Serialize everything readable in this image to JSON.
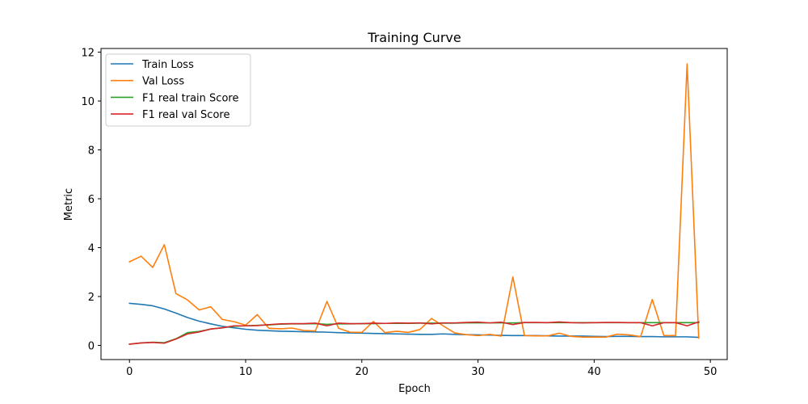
{
  "chart_data": {
    "type": "line",
    "title": "Training Curve",
    "xlabel": "Epoch",
    "ylabel": "Metric",
    "xlim": [
      -2.45,
      51.45
    ],
    "ylim": [
      -0.58,
      12.15
    ],
    "xticks": [
      0,
      10,
      20,
      30,
      40,
      50
    ],
    "yticks": [
      0,
      2,
      4,
      6,
      8,
      10,
      12
    ],
    "grid": false,
    "legend_position": "top-left",
    "series": [
      {
        "name": "Train Loss",
        "color": "#1f77b4",
        "x": [
          0,
          1,
          2,
          3,
          4,
          5,
          6,
          7,
          8,
          9,
          10,
          11,
          12,
          13,
          14,
          15,
          16,
          17,
          18,
          19,
          20,
          21,
          22,
          23,
          24,
          25,
          26,
          27,
          28,
          29,
          30,
          31,
          32,
          33,
          34,
          35,
          36,
          37,
          38,
          39,
          40,
          41,
          42,
          43,
          44,
          45,
          46,
          47,
          48,
          49
        ],
        "values": [
          1.72,
          1.68,
          1.62,
          1.49,
          1.32,
          1.14,
          0.99,
          0.88,
          0.78,
          0.72,
          0.66,
          0.62,
          0.6,
          0.58,
          0.57,
          0.56,
          0.55,
          0.54,
          0.52,
          0.51,
          0.5,
          0.49,
          0.48,
          0.47,
          0.46,
          0.45,
          0.45,
          0.47,
          0.45,
          0.44,
          0.43,
          0.42,
          0.41,
          0.4,
          0.4,
          0.4,
          0.39,
          0.38,
          0.38,
          0.38,
          0.37,
          0.36,
          0.37,
          0.37,
          0.36,
          0.36,
          0.35,
          0.35,
          0.35,
          0.33
        ]
      },
      {
        "name": "Val Loss",
        "color": "#ff7f0e",
        "x": [
          0,
          1,
          2,
          3,
          4,
          5,
          6,
          7,
          8,
          9,
          10,
          11,
          12,
          13,
          14,
          15,
          16,
          17,
          18,
          19,
          20,
          21,
          22,
          23,
          24,
          25,
          26,
          27,
          28,
          29,
          30,
          31,
          32,
          33,
          34,
          35,
          36,
          37,
          38,
          39,
          40,
          41,
          42,
          43,
          44,
          45,
          46,
          47,
          48,
          49
        ],
        "values": [
          3.42,
          3.65,
          3.19,
          4.12,
          2.12,
          1.86,
          1.45,
          1.58,
          1.06,
          0.97,
          0.83,
          1.26,
          0.7,
          0.68,
          0.71,
          0.61,
          0.59,
          1.8,
          0.7,
          0.54,
          0.53,
          0.98,
          0.52,
          0.58,
          0.53,
          0.65,
          1.1,
          0.8,
          0.51,
          0.44,
          0.4,
          0.45,
          0.38,
          2.8,
          0.4,
          0.39,
          0.39,
          0.5,
          0.37,
          0.34,
          0.34,
          0.34,
          0.46,
          0.43,
          0.36,
          1.88,
          0.4,
          0.4,
          11.52,
          0.3
        ]
      },
      {
        "name": "F1 real train Score",
        "color": "#2ca02c",
        "x": [
          0,
          1,
          2,
          3,
          4,
          5,
          6,
          7,
          8,
          9,
          10,
          11,
          12,
          13,
          14,
          15,
          16,
          17,
          18,
          19,
          20,
          21,
          22,
          23,
          24,
          25,
          26,
          27,
          28,
          29,
          30,
          31,
          32,
          33,
          34,
          35,
          36,
          37,
          38,
          39,
          40,
          41,
          42,
          43,
          44,
          45,
          46,
          47,
          48,
          49
        ],
        "values": [
          0.05,
          0.1,
          0.13,
          0.11,
          0.27,
          0.52,
          0.57,
          0.67,
          0.72,
          0.78,
          0.8,
          0.82,
          0.84,
          0.87,
          0.88,
          0.88,
          0.89,
          0.86,
          0.88,
          0.88,
          0.89,
          0.89,
          0.9,
          0.9,
          0.9,
          0.91,
          0.91,
          0.91,
          0.91,
          0.92,
          0.92,
          0.92,
          0.92,
          0.92,
          0.93,
          0.93,
          0.93,
          0.93,
          0.93,
          0.93,
          0.93,
          0.93,
          0.93,
          0.93,
          0.93,
          0.93,
          0.93,
          0.93,
          0.93,
          0.93
        ]
      },
      {
        "name": "F1 real val Score",
        "color": "#d62728",
        "x": [
          0,
          1,
          2,
          3,
          4,
          5,
          6,
          7,
          8,
          9,
          10,
          11,
          12,
          13,
          14,
          15,
          16,
          17,
          18,
          19,
          20,
          21,
          22,
          23,
          24,
          25,
          26,
          27,
          28,
          29,
          30,
          31,
          32,
          33,
          34,
          35,
          36,
          37,
          38,
          39,
          40,
          41,
          42,
          43,
          44,
          45,
          46,
          47,
          48,
          49
        ],
        "values": [
          0.05,
          0.1,
          0.12,
          0.09,
          0.26,
          0.47,
          0.55,
          0.67,
          0.72,
          0.8,
          0.8,
          0.81,
          0.85,
          0.88,
          0.89,
          0.89,
          0.91,
          0.8,
          0.91,
          0.89,
          0.89,
          0.91,
          0.9,
          0.92,
          0.91,
          0.92,
          0.88,
          0.92,
          0.92,
          0.94,
          0.95,
          0.92,
          0.95,
          0.85,
          0.94,
          0.94,
          0.93,
          0.96,
          0.93,
          0.92,
          0.93,
          0.94,
          0.94,
          0.93,
          0.93,
          0.8,
          0.93,
          0.93,
          0.8,
          0.96
        ]
      }
    ]
  }
}
